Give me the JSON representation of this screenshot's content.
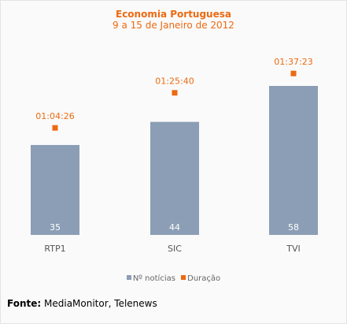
{
  "chart_data": {
    "type": "bar",
    "title": "Economia Portuguesa",
    "subtitle": "9 a 15 de Janeiro de 2012",
    "categories": [
      "RTP1",
      "SIC",
      "TVI"
    ],
    "series": [
      {
        "name": "Nº notícias",
        "values": [
          35,
          44,
          58
        ],
        "color": "#8b9eb5"
      },
      {
        "name": "Duração",
        "values": [
          "01:04:26",
          "01:25:40",
          "01:37:23"
        ],
        "values_minutes": [
          64.43,
          85.67,
          97.38
        ],
        "color": "#ec6a12"
      }
    ],
    "legend_position": "bottom",
    "grid": false
  },
  "source": {
    "label": "Fonte:",
    "text": "MediaMonitor, Telenews"
  }
}
